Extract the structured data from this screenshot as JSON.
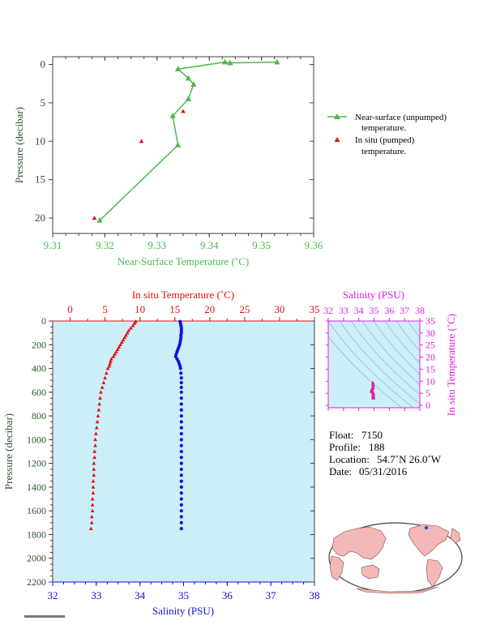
{
  "chart_data": [
    {
      "type": "line",
      "xlabel": "Near-Surface Temperature (˚C)",
      "ylabel": "Pressure (decibar)",
      "xlim": [
        9.31,
        9.36
      ],
      "ylim": [
        22,
        -1
      ],
      "x_ticks": [
        "9.31",
        "9.32",
        "9.33",
        "9.34",
        "9.35",
        "9.36"
      ],
      "y_ticks": [
        "0",
        "5",
        "10",
        "15",
        "20"
      ],
      "x_tick_values": [
        9.31,
        9.32,
        9.33,
        9.34,
        9.35,
        9.36
      ],
      "y_tick_values": [
        0,
        5,
        10,
        15,
        20
      ],
      "series": [
        {
          "name": "Near-surface (unpumped) temperature.",
          "color": "#4cb84c",
          "marker": "triangle",
          "connected": true,
          "points": [
            [
              9.353,
              -0.3
            ],
            [
              9.344,
              -0.2
            ],
            [
              9.343,
              -0.3
            ],
            [
              9.334,
              0.6
            ],
            [
              9.336,
              1.8
            ],
            [
              9.337,
              2.6
            ],
            [
              9.336,
              4.5
            ],
            [
              9.333,
              6.7
            ],
            [
              9.334,
              10.5
            ],
            [
              9.319,
              20.3
            ]
          ]
        },
        {
          "name": "In situ (pumped) temperature.",
          "color": "#e01010",
          "marker": "triangle",
          "connected": false,
          "points": [
            [
              9.335,
              6.1
            ],
            [
              9.327,
              10.0
            ],
            [
              9.318,
              20.0
            ]
          ]
        }
      ],
      "legend": [
        {
          "line1": "Near-surface (unpumped)",
          "line2": "temperature."
        },
        {
          "line1": "In situ (pumped)",
          "line2": "temperature."
        }
      ]
    },
    {
      "type": "scatter",
      "top_xlabel": "In situ Temperature (˚C)",
      "bottom_xlabel": "Salinity (PSU)",
      "ylabel": "Pressure (decibar)",
      "temp_lim": [
        -2.5,
        35
      ],
      "sal_lim": [
        32,
        38
      ],
      "ylim": [
        2200,
        0
      ],
      "temp_ticks": [
        "0",
        "5",
        "10",
        "15",
        "20",
        "25",
        "30",
        "35"
      ],
      "temp_tick_values": [
        0,
        5,
        10,
        15,
        20,
        25,
        30,
        35
      ],
      "sal_ticks": [
        "32",
        "33",
        "34",
        "35",
        "36",
        "37",
        "38"
      ],
      "sal_tick_values": [
        32,
        33,
        34,
        35,
        36,
        37,
        38
      ],
      "pressure_ticks": [
        "0",
        "200",
        "400",
        "600",
        "800",
        "1000",
        "1200",
        "1400",
        "1600",
        "1800",
        "2000",
        "2200"
      ],
      "pressure_tick_values": [
        0,
        200,
        400,
        600,
        800,
        1000,
        1200,
        1400,
        1600,
        1800,
        2000,
        2200
      ],
      "temperature_color": "#e01010",
      "salinity_color": "#1010dd",
      "temperature_profile": [
        [
          9.4,
          5
        ],
        [
          9.2,
          20
        ],
        [
          9.0,
          40
        ],
        [
          8.7,
          60
        ],
        [
          8.4,
          80
        ],
        [
          8.2,
          100
        ],
        [
          8.0,
          120
        ],
        [
          7.8,
          140
        ],
        [
          7.6,
          160
        ],
        [
          7.4,
          180
        ],
        [
          7.2,
          200
        ],
        [
          7.0,
          220
        ],
        [
          6.8,
          240
        ],
        [
          6.6,
          260
        ],
        [
          6.4,
          280
        ],
        [
          6.2,
          300
        ],
        [
          5.9,
          320
        ],
        [
          5.8,
          340
        ],
        [
          5.7,
          360
        ],
        [
          5.6,
          380
        ],
        [
          5.4,
          400
        ],
        [
          5.2,
          440
        ],
        [
          5.0,
          480
        ],
        [
          4.8,
          520
        ],
        [
          4.6,
          560
        ],
        [
          4.4,
          600
        ],
        [
          4.3,
          650
        ],
        [
          4.2,
          700
        ],
        [
          4.1,
          750
        ],
        [
          4.0,
          800
        ],
        [
          3.9,
          850
        ],
        [
          3.8,
          900
        ],
        [
          3.7,
          950
        ],
        [
          3.6,
          1000
        ],
        [
          3.6,
          1050
        ],
        [
          3.5,
          1100
        ],
        [
          3.5,
          1150
        ],
        [
          3.4,
          1200
        ],
        [
          3.4,
          1250
        ],
        [
          3.4,
          1300
        ],
        [
          3.3,
          1350
        ],
        [
          3.3,
          1400
        ],
        [
          3.3,
          1450
        ],
        [
          3.2,
          1500
        ],
        [
          3.2,
          1550
        ],
        [
          3.2,
          1600
        ],
        [
          3.1,
          1650
        ],
        [
          3.1,
          1700
        ],
        [
          3.0,
          1750
        ]
      ],
      "salinity_profile": [
        [
          34.92,
          5
        ],
        [
          34.93,
          20
        ],
        [
          34.94,
          40
        ],
        [
          34.95,
          60
        ],
        [
          34.95,
          80
        ],
        [
          34.95,
          100
        ],
        [
          34.94,
          120
        ],
        [
          34.94,
          140
        ],
        [
          34.93,
          160
        ],
        [
          34.92,
          180
        ],
        [
          34.91,
          200
        ],
        [
          34.89,
          220
        ],
        [
          34.87,
          240
        ],
        [
          34.85,
          260
        ],
        [
          34.83,
          280
        ],
        [
          34.82,
          300
        ],
        [
          34.85,
          320
        ],
        [
          34.88,
          340
        ],
        [
          34.9,
          360
        ],
        [
          34.92,
          380
        ],
        [
          34.93,
          400
        ],
        [
          34.94,
          440
        ],
        [
          34.95,
          480
        ],
        [
          34.95,
          520
        ],
        [
          34.95,
          560
        ],
        [
          34.95,
          600
        ],
        [
          34.95,
          650
        ],
        [
          34.95,
          700
        ],
        [
          34.95,
          750
        ],
        [
          34.95,
          800
        ],
        [
          34.95,
          850
        ],
        [
          34.95,
          900
        ],
        [
          34.95,
          950
        ],
        [
          34.95,
          1000
        ],
        [
          34.95,
          1050
        ],
        [
          34.95,
          1100
        ],
        [
          34.95,
          1150
        ],
        [
          34.95,
          1200
        ],
        [
          34.95,
          1250
        ],
        [
          34.95,
          1300
        ],
        [
          34.95,
          1350
        ],
        [
          34.95,
          1400
        ],
        [
          34.95,
          1450
        ],
        [
          34.95,
          1500
        ],
        [
          34.95,
          1550
        ],
        [
          34.95,
          1600
        ],
        [
          34.95,
          1650
        ],
        [
          34.95,
          1700
        ],
        [
          34.95,
          1750
        ]
      ]
    },
    {
      "type": "scatter",
      "xlabel": "Salinity (PSU)",
      "ylabel": "In situ Temperature (˚C)",
      "xlim": [
        32,
        38
      ],
      "ylim": [
        -1,
        35
      ],
      "x_ticks": [
        "32",
        "33",
        "34",
        "35",
        "36",
        "37",
        "38"
      ],
      "x_tick_values": [
        32,
        33,
        34,
        35,
        36,
        37,
        38
      ],
      "y_ticks": [
        "0",
        "5",
        "10",
        "15",
        "20",
        "25",
        "30",
        "35"
      ],
      "y_tick_values": [
        0,
        5,
        10,
        15,
        20,
        25,
        30,
        35
      ],
      "color": "#e020a0",
      "points": [
        [
          34.92,
          9.4
        ],
        [
          34.93,
          8.7
        ],
        [
          34.94,
          8.0
        ],
        [
          34.93,
          7.4
        ],
        [
          34.91,
          7.0
        ],
        [
          34.87,
          6.6
        ],
        [
          34.83,
          6.2
        ],
        [
          34.85,
          5.8
        ],
        [
          34.9,
          5.6
        ],
        [
          34.93,
          5.4
        ],
        [
          34.95,
          5.0
        ],
        [
          34.95,
          4.6
        ],
        [
          34.95,
          4.2
        ],
        [
          34.95,
          4.0
        ],
        [
          34.95,
          3.6
        ],
        [
          34.95,
          3.4
        ],
        [
          34.95,
          3.3
        ],
        [
          34.95,
          3.2
        ],
        [
          34.95,
          3.1
        ],
        [
          34.95,
          3.0
        ]
      ]
    }
  ],
  "float_info": {
    "float_label": "Float:",
    "float_value": "7150",
    "profile_label": "Profile:",
    "profile_value": "188",
    "location_label": "Location:",
    "location_value": "54.7˚N  26.0˚W",
    "date_label": "Date:",
    "date_value": "05/31/2016"
  },
  "map": {
    "ocean_color": "#ffffff",
    "land_color": "#f4b8b8",
    "marker_color": "#1050ff"
  },
  "colors": {
    "top_axis": "#4cb84c",
    "temperature": "#e01010",
    "salinity": "#1010dd",
    "ts_axis": "#e020e0",
    "panel_bg": "#cceef8",
    "frame": "#404040"
  }
}
